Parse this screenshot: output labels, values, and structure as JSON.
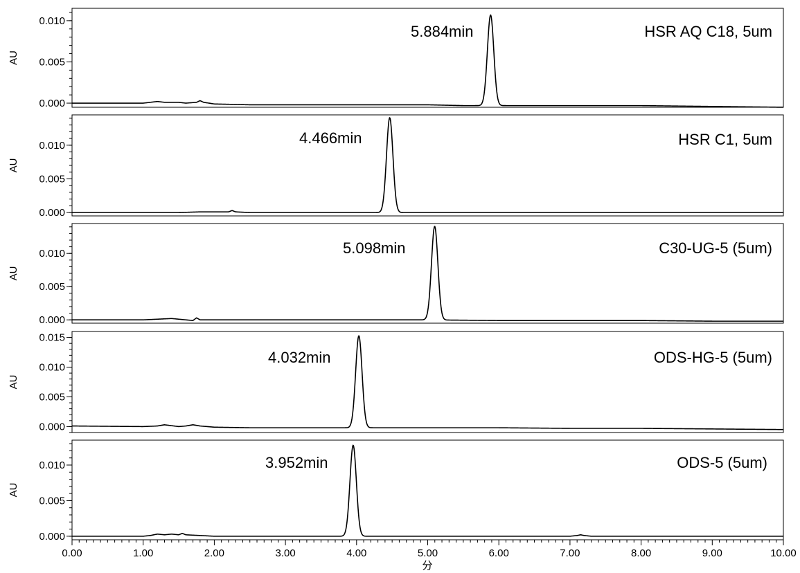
{
  "chart_data": {
    "type": "line",
    "title": "",
    "xlabel": "分",
    "xlim": [
      0,
      10
    ],
    "x_ticks": [
      "0.00",
      "1.00",
      "2.00",
      "3.00",
      "4.00",
      "5.00",
      "6.00",
      "7.00",
      "8.00",
      "9.00",
      "10.00"
    ],
    "grid": false,
    "line_color": "#000000",
    "panels": [
      {
        "ylabel": "AU",
        "ylim": [
          -0.0005,
          0.0115
        ],
        "y_ticks": [
          "0.000",
          "0.005",
          "0.010"
        ],
        "y_tick_values": [
          0,
          0.005,
          0.01
        ],
        "column_label": "HSR AQ C18, 5um",
        "peak_label": "5.884min",
        "peak": {
          "rt": 5.884,
          "height": 0.011
        },
        "series": {
          "x": [
            0,
            1.0,
            1.1,
            1.2,
            1.3,
            1.5,
            1.6,
            1.75,
            1.8,
            1.85,
            2.0,
            2.5,
            3.0,
            4.0,
            5.0,
            5.5,
            6.5,
            7.0,
            8.0,
            9.0,
            10.0
          ],
          "y": [
            0,
            0,
            0.0001,
            0.0002,
            0.0001,
            0.0001,
            0,
            0.0001,
            0.0003,
            0.0001,
            -0.0001,
            -0.0002,
            -0.0002,
            -0.0002,
            -0.0002,
            -0.0003,
            -0.0003,
            -0.0003,
            -0.0003,
            -0.0004,
            -0.0005
          ]
        }
      },
      {
        "ylabel": "AU",
        "ylim": [
          -0.0005,
          0.0145
        ],
        "y_ticks": [
          "0.000",
          "0.005",
          "0.010"
        ],
        "y_tick_values": [
          0,
          0.005,
          0.01
        ],
        "column_label": "HSR C1, 5um",
        "peak_label": "4.466min",
        "peak": {
          "rt": 4.466,
          "height": 0.0141
        },
        "series": {
          "x": [
            0,
            1.0,
            1.5,
            1.8,
            2.0,
            2.2,
            2.25,
            2.3,
            2.5,
            3.0,
            4.0,
            5.0,
            6.0,
            7.0,
            8.0,
            9.0,
            10.0
          ],
          "y": [
            0,
            0,
            0,
            0.0001,
            0.0001,
            0.0001,
            0.0003,
            0.0001,
            0,
            0,
            0,
            0,
            0,
            0,
            0,
            0,
            0
          ]
        }
      },
      {
        "ylabel": "AU",
        "ylim": [
          -0.0005,
          0.0145
        ],
        "y_ticks": [
          "0.000",
          "0.005",
          "0.010"
        ],
        "y_tick_values": [
          0,
          0.005,
          0.01
        ],
        "column_label": "C30-UG-5 (5um)",
        "peak_label": "5.098min",
        "peak": {
          "rt": 5.098,
          "height": 0.0141
        },
        "series": {
          "x": [
            0,
            1.0,
            1.2,
            1.4,
            1.6,
            1.7,
            1.75,
            1.8,
            2.0,
            2.5,
            3.0,
            4.0,
            5.0,
            6.0,
            7.0,
            8.0,
            9.0,
            10.0
          ],
          "y": [
            0,
            0,
            0.0001,
            0.0002,
            0,
            -0.0001,
            0.0003,
            0,
            0,
            0,
            0,
            0,
            0,
            -0.0001,
            -0.0001,
            -0.0001,
            -0.0002,
            -0.0002
          ]
        }
      },
      {
        "ylabel": "AU",
        "ylim": [
          -0.001,
          0.016
        ],
        "y_ticks": [
          "0.000",
          "0.005",
          "0.010",
          "0.015"
        ],
        "y_tick_values": [
          0,
          0.005,
          0.01,
          0.015
        ],
        "column_label": "ODS-HG-5 (5um)",
        "peak_label": "4.032min",
        "peak": {
          "rt": 4.032,
          "height": 0.0155
        },
        "series": {
          "x": [
            0,
            1.0,
            1.2,
            1.3,
            1.5,
            1.6,
            1.7,
            1.8,
            2.0,
            2.5,
            3.0,
            4.0,
            5.0,
            6.0,
            7.0,
            8.0,
            9.0,
            10.0
          ],
          "y": [
            0.0001,
            0,
            0.0001,
            0.0003,
            0,
            0.0001,
            0.0003,
            0.0001,
            -0.0001,
            -0.0002,
            -0.0002,
            -0.0002,
            -0.0002,
            -0.0002,
            -0.0003,
            -0.0003,
            -0.0004,
            -0.0005
          ]
        }
      },
      {
        "ylabel": "AU",
        "ylim": [
          -0.0005,
          0.0135
        ],
        "y_ticks": [
          "0.000",
          "0.005",
          "0.010"
        ],
        "y_tick_values": [
          0,
          0.005,
          0.01
        ],
        "column_label": "ODS-5 (5um)",
        "peak_label": "3.952min",
        "peak": {
          "rt": 3.952,
          "height": 0.0128
        },
        "series": {
          "x": [
            0,
            1.0,
            1.1,
            1.2,
            1.3,
            1.4,
            1.5,
            1.55,
            1.6,
            1.8,
            2.0,
            2.5,
            3.0,
            4.0,
            5.0,
            6.0,
            7.0,
            7.1,
            7.15,
            7.2,
            7.3,
            8.0,
            9.0,
            10.0
          ],
          "y": [
            0,
            0,
            0.0001,
            0.0003,
            0.0002,
            0.0003,
            0.0002,
            0.0004,
            0.0002,
            0.0001,
            0,
            0,
            0,
            0,
            0,
            0,
            0,
            0.0001,
            0.0002,
            0.0001,
            0,
            0,
            0,
            0
          ]
        }
      }
    ]
  }
}
